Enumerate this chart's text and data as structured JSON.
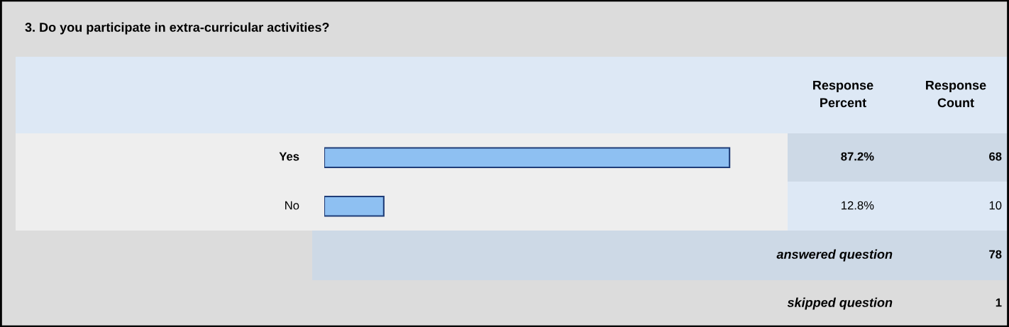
{
  "chart_data": {
    "type": "bar",
    "orientation": "horizontal",
    "title": "3. Do you participate in extra-curricular activities?",
    "categories": [
      "Yes",
      "No"
    ],
    "values": [
      87.2,
      12.8
    ],
    "value_labels": [
      "87.2%",
      "12.8%"
    ],
    "color": "#8ec0f2",
    "xlim": [
      0,
      100
    ],
    "tick_labels": false,
    "annotations": [
      "Response\nPercent",
      "Response\nCount",
      "68",
      "10",
      "answered question",
      "78",
      "skipped question",
      "1"
    ]
  }
}
